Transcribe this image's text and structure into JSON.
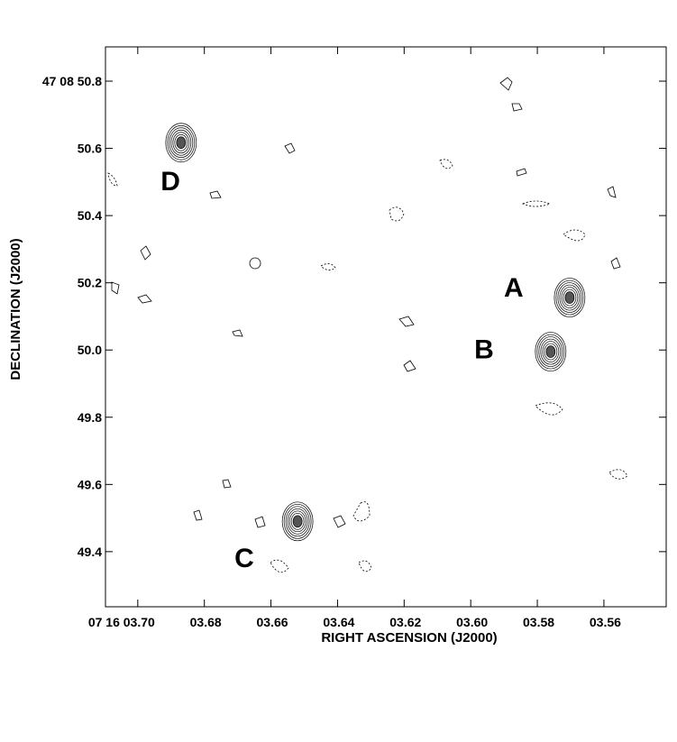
{
  "chart_data": {
    "type": "contour",
    "x_label": "RIGHT ASCENSION (J2000)",
    "y_label": "DECLINATION (J2000)",
    "xlim": [
      3.7097,
      3.5413
    ],
    "ylim": [
      49.236,
      50.902
    ],
    "xticks": [
      {
        "value": 3.7,
        "label": "07 16 03.70"
      },
      {
        "value": 3.68,
        "label": "03.68"
      },
      {
        "value": 3.66,
        "label": "03.66"
      },
      {
        "value": 3.64,
        "label": "03.64"
      },
      {
        "value": 3.62,
        "label": "03.62"
      },
      {
        "value": 3.6,
        "label": "03.60"
      },
      {
        "value": 3.58,
        "label": "03.58"
      },
      {
        "value": 3.56,
        "label": "03.56"
      }
    ],
    "yticks": [
      {
        "value": 50.8,
        "label": "47 08 50.8"
      },
      50.6,
      50.4,
      50.2,
      {
        "value": 50.0,
        "label": "50.0"
      },
      49.8,
      49.6,
      49.4
    ],
    "sources": [
      {
        "x": 3.5703,
        "y": 50.156
      },
      {
        "x": 3.576,
        "y": 49.995
      },
      {
        "x": 3.652,
        "y": 49.49
      },
      {
        "x": 3.687,
        "y": 50.617
      }
    ],
    "annotations": [
      {
        "text": "A",
        "x": 3.5871,
        "y": 50.188
      },
      {
        "text": "B",
        "x": 3.596,
        "y": 50.005
      },
      {
        "text": "C",
        "x": 3.668,
        "y": 49.383
      },
      {
        "text": "D",
        "x": 3.6902,
        "y": 50.505
      }
    ]
  }
}
